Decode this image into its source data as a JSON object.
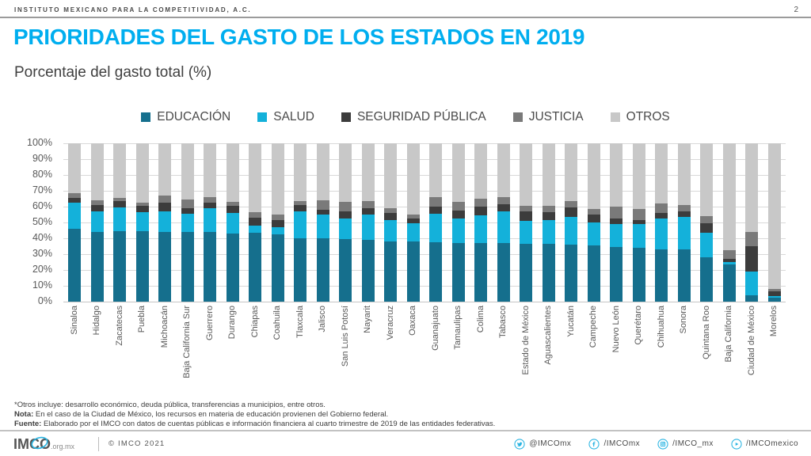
{
  "header": {
    "org": "INSTITUTO MEXICANO PARA LA COMPETITIVIDAD, A.C.",
    "page_number": "2"
  },
  "title": "PRIORIDADES DEL GASTO DE LOS ESTADOS EN 2019",
  "subtitle": "Porcentaje del gasto total (%)",
  "colors": {
    "accent": "#00AEEF",
    "icon_cyan": "#29b4e2"
  },
  "chart_data": {
    "type": "bar",
    "variant": "stacked-100-percent",
    "grid": "horizontal",
    "legend_position": "top",
    "ylim": [
      0,
      100
    ],
    "y_ticks": [
      "100%",
      "90%",
      "80%",
      "70%",
      "60%",
      "50%",
      "40%",
      "30%",
      "20%",
      "10%",
      "0%"
    ],
    "categories": [
      "Sinaloa",
      "Hidalgo",
      "Zacatecas",
      "Puebla",
      "Michoacán",
      "Baja California Sur",
      "Guerrero",
      "Durango",
      "Chiapas",
      "Coahuila",
      "Tlaxcala",
      "Jalisco",
      "San Luis Potosí",
      "Nayarit",
      "Veracruz",
      "Oaxaca",
      "Guanajuato",
      "Tamaulipas",
      "Colima",
      "Tabasco",
      "Estado de México",
      "Aguascalientes",
      "Yucatán",
      "Campeche",
      "Nuevo León",
      "Querétaro",
      "Chihuahua",
      "Sonora",
      "Quintana Roo",
      "Baja California",
      "Ciudad de México",
      "Morelos"
    ],
    "series": [
      {
        "key": "educacion",
        "label": "EDUCACIÓN",
        "color": "#156f8d",
        "values": [
          46,
          44,
          44.5,
          44.5,
          44,
          44,
          44,
          43,
          43.5,
          42.5,
          40,
          40,
          39.5,
          39,
          38,
          38,
          37.5,
          37,
          37,
          37,
          36.5,
          36.5,
          36,
          35.5,
          34.5,
          34,
          33,
          33,
          28,
          23.5,
          4,
          2.5
        ]
      },
      {
        "key": "salud",
        "label": "SALUD",
        "color": "#14b1da",
        "values": [
          16.5,
          13,
          15,
          12,
          13,
          11.5,
          15,
          13,
          4.5,
          4.5,
          17,
          15,
          13,
          16,
          13.5,
          11.5,
          18,
          15.5,
          17.5,
          20,
          14.5,
          15,
          17.5,
          14.5,
          14.5,
          15,
          19.5,
          20.5,
          15.5,
          1.5,
          15,
          1
        ]
      },
      {
        "key": "seguridad-publica",
        "label": "SEGURIDAD PÚBLICA",
        "color": "#3c3c3c",
        "values": [
          3,
          4,
          4,
          4,
          5.5,
          3.5,
          3.5,
          4.5,
          5,
          4.5,
          4,
          3,
          4.5,
          4,
          4.5,
          3,
          4.5,
          5,
          5.5,
          4.5,
          6,
          5,
          6,
          5,
          3.5,
          2.5,
          3.5,
          3.5,
          6,
          2,
          16,
          3
        ]
      },
      {
        "key": "justicia",
        "label": "JUSTICIA",
        "color": "#7a7a7a",
        "values": [
          3,
          3,
          2,
          2,
          4.5,
          5.5,
          3.5,
          2.5,
          3.5,
          3.5,
          2.5,
          6,
          6,
          4.5,
          3,
          2.5,
          6,
          5.5,
          5,
          4.5,
          3.5,
          4,
          4,
          3.5,
          7.5,
          7,
          6,
          4,
          4.5,
          5.5,
          9,
          1.5
        ]
      },
      {
        "key": "otros",
        "label": "OTROS",
        "color": "#c8c8c8",
        "values": [
          31.5,
          36,
          34.5,
          37.5,
          33,
          35.5,
          34,
          37,
          43.5,
          45,
          36.5,
          36,
          37,
          36.5,
          41,
          45,
          34,
          37,
          35,
          34,
          39.5,
          39.5,
          36.5,
          41.5,
          40,
          41.5,
          38,
          39,
          46,
          67.5,
          56,
          92
        ]
      }
    ]
  },
  "notes": [
    {
      "bold": "",
      "text": "*Otros incluye: desarrollo económico, deuda pública, transferencias a municipios, entre otros."
    },
    {
      "bold": "Nota:",
      "text": " En el caso de la Ciudad de México, los recursos en materia de educación provienen del Gobierno federal."
    },
    {
      "bold": "Fuente:",
      "text": " Elaborado por el IMCO con datos de cuentas públicas e información financiera al cuarto trimestre de 2019 de las entidades federativas."
    }
  ],
  "footer": {
    "logo_text": "IMCO",
    "logo_suffix": ".org.mx",
    "copyright": "© IMCO 2021",
    "social": [
      {
        "icon": "twitter-icon",
        "handle": "@IMCOmx"
      },
      {
        "icon": "facebook-icon",
        "handle": "/IMCOmx"
      },
      {
        "icon": "instagram-icon",
        "handle": "/IMCO_mx"
      },
      {
        "icon": "youtube-icon",
        "handle": "/IMCOmexico"
      }
    ]
  }
}
